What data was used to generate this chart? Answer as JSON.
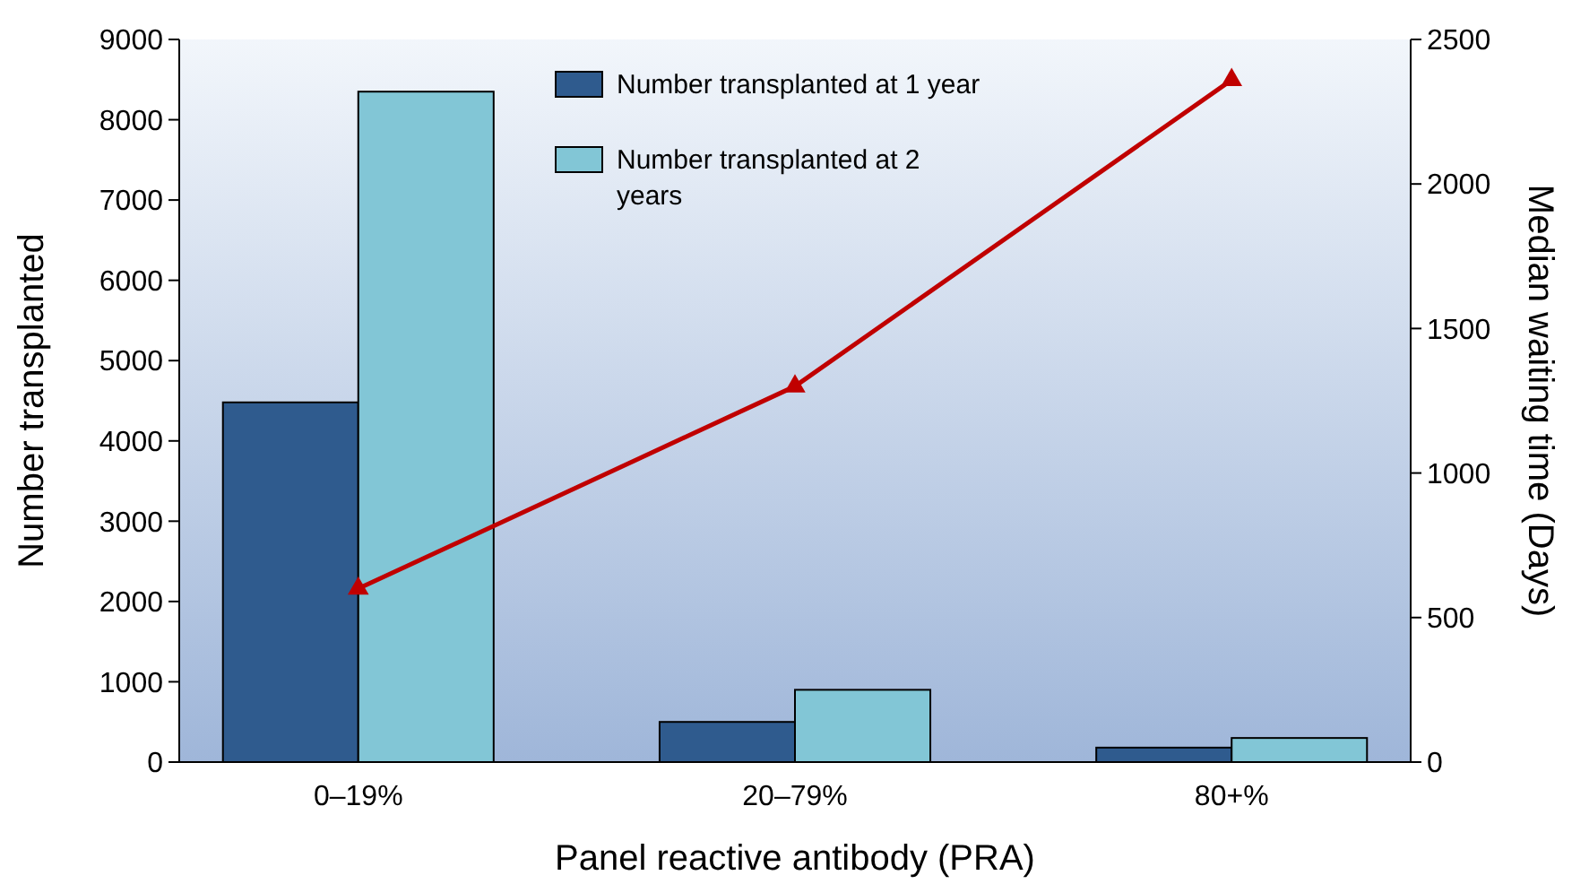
{
  "chart_data": {
    "type": "bar",
    "xlabel": "Panel reactive antibody (PRA)",
    "ylabel": "Number transplanted",
    "y2label": "Median waiting time (Days)",
    "categories": [
      "0–19%",
      "20–79%",
      "80+%"
    ],
    "series": [
      {
        "name": "Number transplanted at 1 year",
        "color": "#2f5b8e",
        "values": [
          4480,
          500,
          180
        ]
      },
      {
        "name": "Number transplanted at 2 years",
        "color": "#82c6d6",
        "values": [
          8350,
          900,
          300
        ]
      },
      {
        "type": "line",
        "axis": "y2",
        "color": "#c00000",
        "values": [
          600,
          1300,
          2360
        ],
        "marker": "triangle"
      }
    ],
    "ylim": [
      0,
      9000
    ],
    "yticks": [
      0,
      1000,
      2000,
      3000,
      4000,
      5000,
      6000,
      7000,
      8000,
      9000
    ],
    "y2lim": [
      0,
      2500
    ],
    "y2ticks": [
      0,
      500,
      1000,
      1500,
      2000,
      2500
    ],
    "legend": "top",
    "grid": false
  }
}
